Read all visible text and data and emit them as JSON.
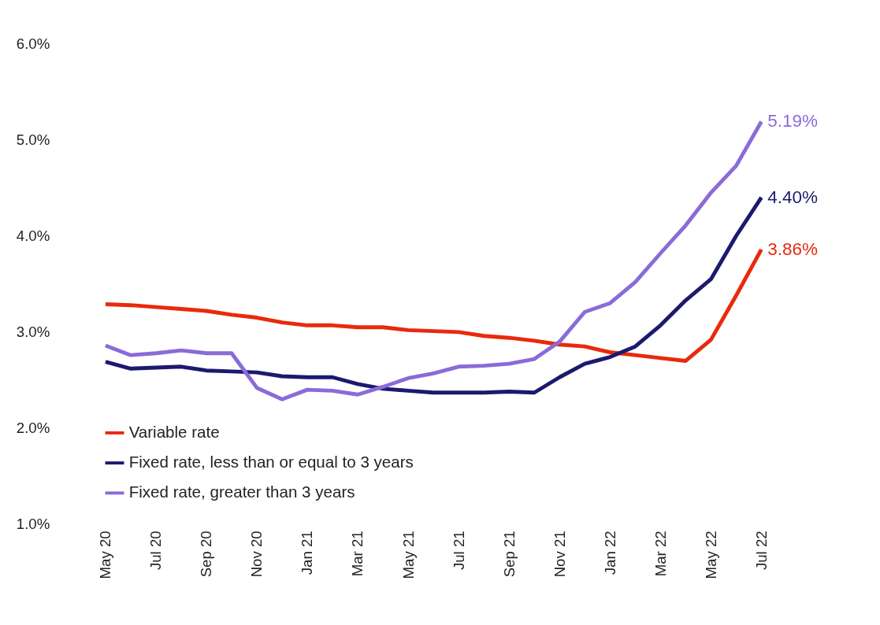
{
  "chart_data": {
    "type": "line",
    "categories": [
      "May 20",
      null,
      "Jul 20",
      null,
      "Sep 20",
      null,
      "Nov 20",
      null,
      "Jan 21",
      null,
      "Mar 21",
      null,
      "May 21",
      null,
      "Jul 21",
      null,
      "Sep 21",
      null,
      "Nov 21",
      null,
      "Jan 22",
      null,
      "Mar 22",
      null,
      "May 22",
      null,
      "Jul 22"
    ],
    "series": [
      {
        "name": "Variable rate",
        "color": "#e82a0c",
        "values": [
          3.29,
          3.28,
          3.26,
          3.24,
          3.22,
          3.18,
          3.15,
          3.1,
          3.07,
          3.07,
          3.05,
          3.05,
          3.02,
          3.01,
          3.0,
          2.96,
          2.94,
          2.91,
          2.87,
          2.85,
          2.79,
          2.76,
          2.73,
          2.7,
          2.92,
          3.38,
          3.86
        ],
        "value_labels": [
          null,
          null,
          null,
          null,
          null,
          null,
          null,
          null,
          null,
          null,
          null,
          null,
          null,
          null,
          null,
          null,
          null,
          null,
          null,
          null,
          null,
          null,
          null,
          null,
          null,
          null,
          "3.86%"
        ]
      },
      {
        "name": "Fixed rate, less than or equal to 3 years",
        "color": "#1b1a6e",
        "values": [
          2.69,
          2.62,
          2.63,
          2.64,
          2.6,
          2.59,
          2.58,
          2.54,
          2.53,
          2.53,
          2.46,
          2.41,
          2.39,
          2.37,
          2.37,
          2.37,
          2.38,
          2.37,
          2.53,
          2.67,
          2.74,
          2.85,
          3.07,
          3.33,
          3.55,
          4.0,
          4.4
        ],
        "value_labels": [
          null,
          null,
          null,
          null,
          null,
          null,
          null,
          null,
          null,
          null,
          null,
          null,
          null,
          null,
          null,
          null,
          null,
          null,
          null,
          null,
          null,
          null,
          null,
          null,
          null,
          null,
          "4.40%"
        ]
      },
      {
        "name": "Fixed rate, greater than 3 years",
        "color": "#8a6bd8",
        "values": [
          2.86,
          2.76,
          2.78,
          2.81,
          2.78,
          2.78,
          2.42,
          2.3,
          2.4,
          2.39,
          2.35,
          2.43,
          2.52,
          2.57,
          2.64,
          2.65,
          2.67,
          2.72,
          2.9,
          3.21,
          3.3,
          3.52,
          3.82,
          4.11,
          4.45,
          4.73,
          5.19
        ],
        "value_labels": [
          null,
          null,
          null,
          null,
          null,
          null,
          null,
          null,
          null,
          null,
          null,
          null,
          null,
          null,
          null,
          null,
          null,
          null,
          null,
          null,
          null,
          null,
          null,
          null,
          null,
          null,
          "5.19%"
        ]
      }
    ],
    "ylim": [
      1,
      6
    ],
    "yticks": [
      {
        "value": 1,
        "label": "1.0%"
      },
      {
        "value": 2,
        "label": "2.0%"
      },
      {
        "value": 3,
        "label": "3.0%"
      },
      {
        "value": 4,
        "label": "4.0%"
      },
      {
        "value": 5,
        "label": "5.0%"
      },
      {
        "value": 6,
        "label": "6.0%"
      }
    ],
    "grid": false,
    "legend": "bottom left",
    "marker": "none",
    "line_style": "solid"
  }
}
